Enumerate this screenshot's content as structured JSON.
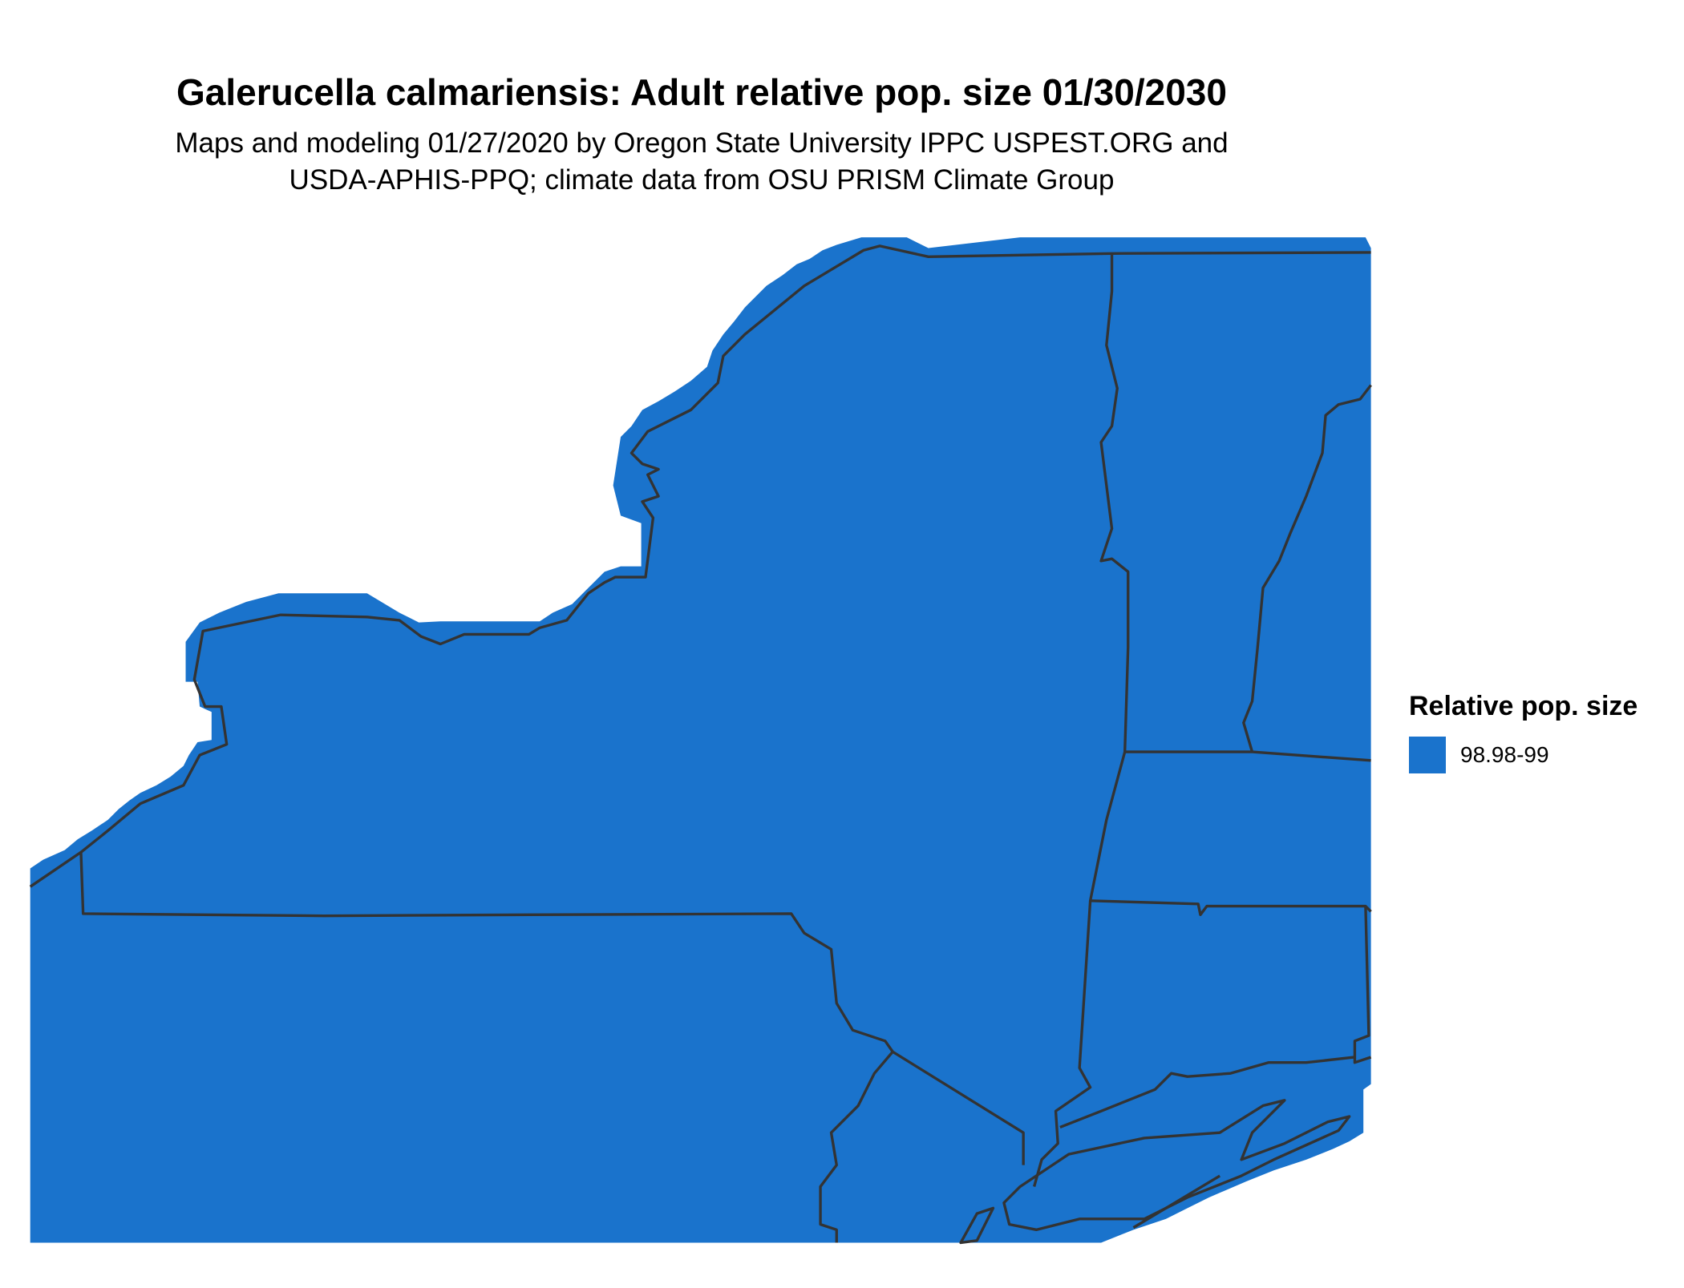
{
  "title": "Galerucella calmariensis: Adult relative pop. size 01/30/2030",
  "subtitle_line1": "Maps and modeling 01/27/2020 by Oregon State University IPPC USPEST.ORG and",
  "subtitle_line2": "USDA-APHIS-PPQ; climate data from OSU PRISM Climate Group",
  "legend": {
    "title": "Relative pop. size",
    "items": [
      {
        "label": "98.98-99",
        "color": "#1a73cc"
      }
    ]
  },
  "colors": {
    "fill": "#1a73cc",
    "border": "#333333",
    "background": "#ffffff"
  }
}
